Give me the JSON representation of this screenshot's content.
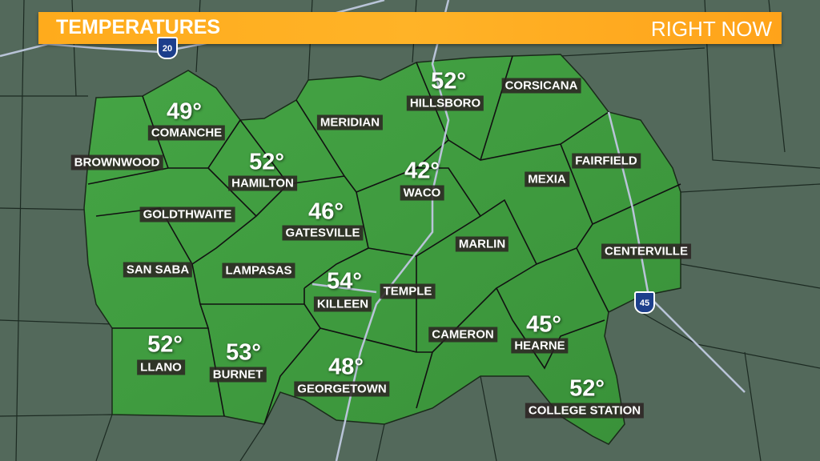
{
  "header": {
    "title": "TEMPERATURES",
    "subtitle": "RIGHT NOW"
  },
  "colors": {
    "banner": "#ffab1c",
    "region": "#3f9a3f",
    "background": "#52685a",
    "label_bg": "#2d2323"
  },
  "highways": [
    {
      "shield": "20",
      "icon": "interstate-shield-icon"
    },
    {
      "shield": "45",
      "icon": "interstate-shield-icon"
    }
  ],
  "cities": [
    {
      "name": "COMANCHE",
      "temp": "49°"
    },
    {
      "name": "BROWNWOOD"
    },
    {
      "name": "HAMILTON",
      "temp": "52°"
    },
    {
      "name": "MERIDIAN"
    },
    {
      "name": "HILLSBORO",
      "temp": "52°"
    },
    {
      "name": "CORSICANA"
    },
    {
      "name": "WACO",
      "temp": "42°"
    },
    {
      "name": "MEXIA"
    },
    {
      "name": "FAIRFIELD"
    },
    {
      "name": "GOLDTHWAITE"
    },
    {
      "name": "GATESVILLE",
      "temp": "46°"
    },
    {
      "name": "MARLIN"
    },
    {
      "name": "CENTERVILLE"
    },
    {
      "name": "SAN SABA"
    },
    {
      "name": "LAMPASAS"
    },
    {
      "name": "KILLEEN",
      "temp": "54°"
    },
    {
      "name": "TEMPLE"
    },
    {
      "name": "CAMERON"
    },
    {
      "name": "HEARNE",
      "temp": "45°"
    },
    {
      "name": "LLANO",
      "temp": "52°"
    },
    {
      "name": "BURNET",
      "temp": "53°"
    },
    {
      "name": "GEORGETOWN",
      "temp": "48°"
    },
    {
      "name": "COLLEGE STATION",
      "temp": "52°"
    }
  ]
}
